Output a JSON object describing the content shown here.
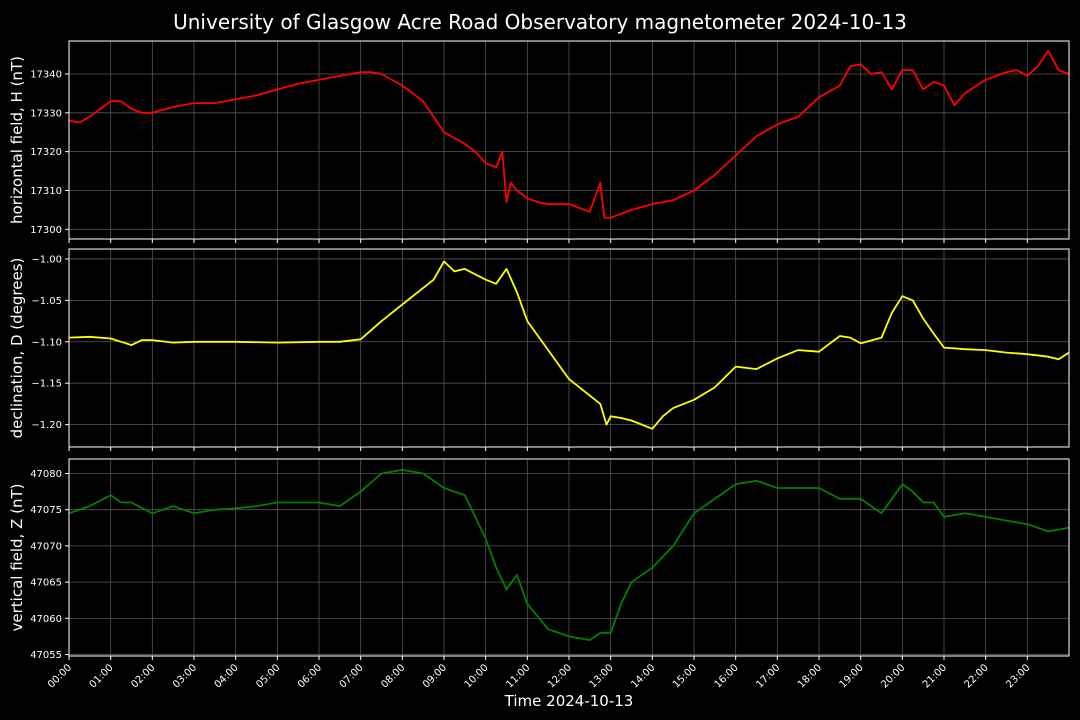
{
  "title": "University of Glasgow Acre Road Observatory magnetometer 2024-10-13",
  "xlabel": "Time 2024-10-13",
  "x_ticks": [
    "00:00",
    "01:00",
    "02:00",
    "03:00",
    "04:00",
    "05:00",
    "06:00",
    "07:00",
    "08:00",
    "09:00",
    "10:00",
    "11:00",
    "12:00",
    "13:00",
    "14:00",
    "15:00",
    "16:00",
    "17:00",
    "18:00",
    "19:00",
    "20:00",
    "21:00",
    "22:00",
    "23:00"
  ],
  "colors": {
    "background": "#000000",
    "grid": "#555555",
    "axes": "#ffffff",
    "H": "#ff0000",
    "D": "#ffff00",
    "Z": "#008000"
  },
  "chart_data": [
    {
      "type": "line",
      "name": "H",
      "ylabel": "horizontal field, H (nT)",
      "xlim": [
        0,
        24
      ],
      "ylim": [
        17297.5,
        17348.5
      ],
      "yticks": [
        17300,
        17310,
        17320,
        17330,
        17340
      ],
      "ytick_labels": [
        "17300",
        "17310",
        "17320",
        "17330",
        "17340"
      ],
      "grid": true,
      "color": "#ff0000",
      "x": [
        0,
        0.25,
        0.5,
        0.75,
        1,
        1.25,
        1.5,
        1.75,
        2,
        2.5,
        3,
        3.5,
        4,
        4.5,
        5,
        5.5,
        6,
        6.5,
        7,
        7.25,
        7.5,
        8,
        8.5,
        9,
        9.5,
        9.75,
        10,
        10.25,
        10.4,
        10.5,
        10.6,
        10.75,
        11,
        11.25,
        11.5,
        12,
        12.5,
        12.75,
        12.85,
        13,
        13.5,
        14,
        14.5,
        15,
        15.5,
        16,
        16.5,
        17,
        17.5,
        18,
        18.5,
        18.75,
        19,
        19.25,
        19.5,
        19.75,
        20,
        20.25,
        20.5,
        20.75,
        21,
        21.25,
        21.5,
        22,
        22.5,
        22.75,
        23,
        23.25,
        23.5,
        23.75,
        24
      ],
      "y": [
        17328,
        17327.5,
        17329,
        17331,
        17333,
        17333,
        17331,
        17330,
        17330,
        17331.5,
        17332.5,
        17332.5,
        17333.5,
        17334.5,
        17336,
        17337.5,
        17338.5,
        17339.5,
        17340.5,
        17340.5,
        17340,
        17337,
        17333,
        17325,
        17322,
        17320,
        17317,
        17316,
        17320,
        17307,
        17312,
        17310,
        17308,
        17307,
        17306.5,
        17306.5,
        17304.5,
        17312,
        17303,
        17303,
        17305,
        17306.5,
        17307.5,
        17310,
        17314,
        17319,
        17324,
        17327,
        17329,
        17334,
        17337,
        17342,
        17342.5,
        17340,
        17340.5,
        17336,
        17341,
        17341,
        17336,
        17338,
        17337,
        17332,
        17335,
        17338.5,
        17340.5,
        17341,
        17339.5,
        17342,
        17346,
        17341,
        17340
      ]
    },
    {
      "type": "line",
      "name": "D",
      "ylabel": "declination, D (degrees)",
      "xlim": [
        0,
        24
      ],
      "ylim": [
        -1.227,
        -0.988
      ],
      "yticks": [
        -1.2,
        -1.15,
        -1.1,
        -1.05,
        -1.0
      ],
      "ytick_labels": [
        "−1.20",
        "−1.15",
        "−1.10",
        "−1.05",
        "−1.00"
      ],
      "grid": true,
      "color": "#ffff00",
      "x": [
        0,
        0.5,
        1,
        1.25,
        1.5,
        1.75,
        2,
        2.5,
        3,
        4,
        5,
        6,
        6.5,
        7,
        7.5,
        8,
        8.5,
        8.75,
        9,
        9.25,
        9.5,
        10,
        10.25,
        10.5,
        10.75,
        11,
        11.5,
        12,
        12.5,
        12.75,
        12.9,
        13,
        13.25,
        13.5,
        14,
        14.25,
        14.5,
        15,
        15.5,
        16,
        16.5,
        17,
        17.5,
        18,
        18.5,
        18.75,
        19,
        19.5,
        19.75,
        20,
        20.25,
        20.5,
        20.75,
        21,
        21.25,
        21.5,
        22,
        22.5,
        23,
        23.5,
        23.75,
        24
      ],
      "y": [
        -1.095,
        -1.094,
        -1.096,
        -1.1,
        -1.104,
        -1.098,
        -1.098,
        -1.101,
        -1.1,
        -1.1,
        -1.101,
        -1.1,
        -1.1,
        -1.097,
        -1.075,
        -1.055,
        -1.035,
        -1.025,
        -1.003,
        -1.015,
        -1.012,
        -1.025,
        -1.03,
        -1.012,
        -1.04,
        -1.075,
        -1.11,
        -1.145,
        -1.165,
        -1.175,
        -1.2,
        -1.19,
        -1.192,
        -1.195,
        -1.205,
        -1.19,
        -1.18,
        -1.17,
        -1.155,
        -1.13,
        -1.133,
        -1.12,
        -1.11,
        -1.112,
        -1.093,
        -1.095,
        -1.102,
        -1.095,
        -1.065,
        -1.045,
        -1.05,
        -1.072,
        -1.09,
        -1.107,
        -1.108,
        -1.109,
        -1.11,
        -1.113,
        -1.115,
        -1.118,
        -1.121,
        -1.113
      ]
    },
    {
      "type": "line",
      "name": "Z",
      "ylabel": "vertical field, Z (nT)",
      "xlim": [
        0,
        24
      ],
      "ylim": [
        47054.8,
        47082
      ],
      "yticks": [
        47055,
        47060,
        47065,
        47070,
        47075,
        47080
      ],
      "ytick_labels": [
        "47055",
        "47060",
        "47065",
        "47070",
        "47075",
        "47080"
      ],
      "grid": true,
      "color": "#008000",
      "x": [
        0,
        0.5,
        1,
        1.25,
        1.5,
        2,
        2.5,
        3,
        3.5,
        4,
        4.5,
        5,
        5.5,
        6,
        6.5,
        7,
        7.5,
        8,
        8.5,
        9,
        9.5,
        10,
        10.25,
        10.5,
        10.75,
        11,
        11.5,
        12,
        12.5,
        12.75,
        13,
        13.25,
        13.5,
        14,
        14.5,
        15,
        15.5,
        16,
        16.5,
        17,
        17.5,
        18,
        18.5,
        19,
        19.5,
        20,
        20.25,
        20.5,
        20.75,
        21,
        21.5,
        22,
        22.5,
        23,
        23.5,
        24
      ],
      "y": [
        47074.5,
        47075.5,
        47077,
        47076,
        47076,
        47074.5,
        47075.5,
        47074.5,
        47075,
        47075.2,
        47075.5,
        47076,
        47076,
        47076,
        47075.5,
        47077.5,
        47080,
        47080.5,
        47080,
        47078,
        47077,
        47071,
        47067,
        47064,
        47066,
        47062,
        47058.5,
        47057.5,
        47057,
        47058,
        47058,
        47062,
        47065,
        47067,
        47070,
        47074.5,
        47076.5,
        47078.5,
        47079,
        47078,
        47078,
        47078,
        47076.5,
        47076.5,
        47074.5,
        47078.5,
        47077.5,
        47076,
        47076,
        47074,
        47074.5,
        47074,
        47073.5,
        47073,
        47072,
        47072.5
      ]
    }
  ]
}
